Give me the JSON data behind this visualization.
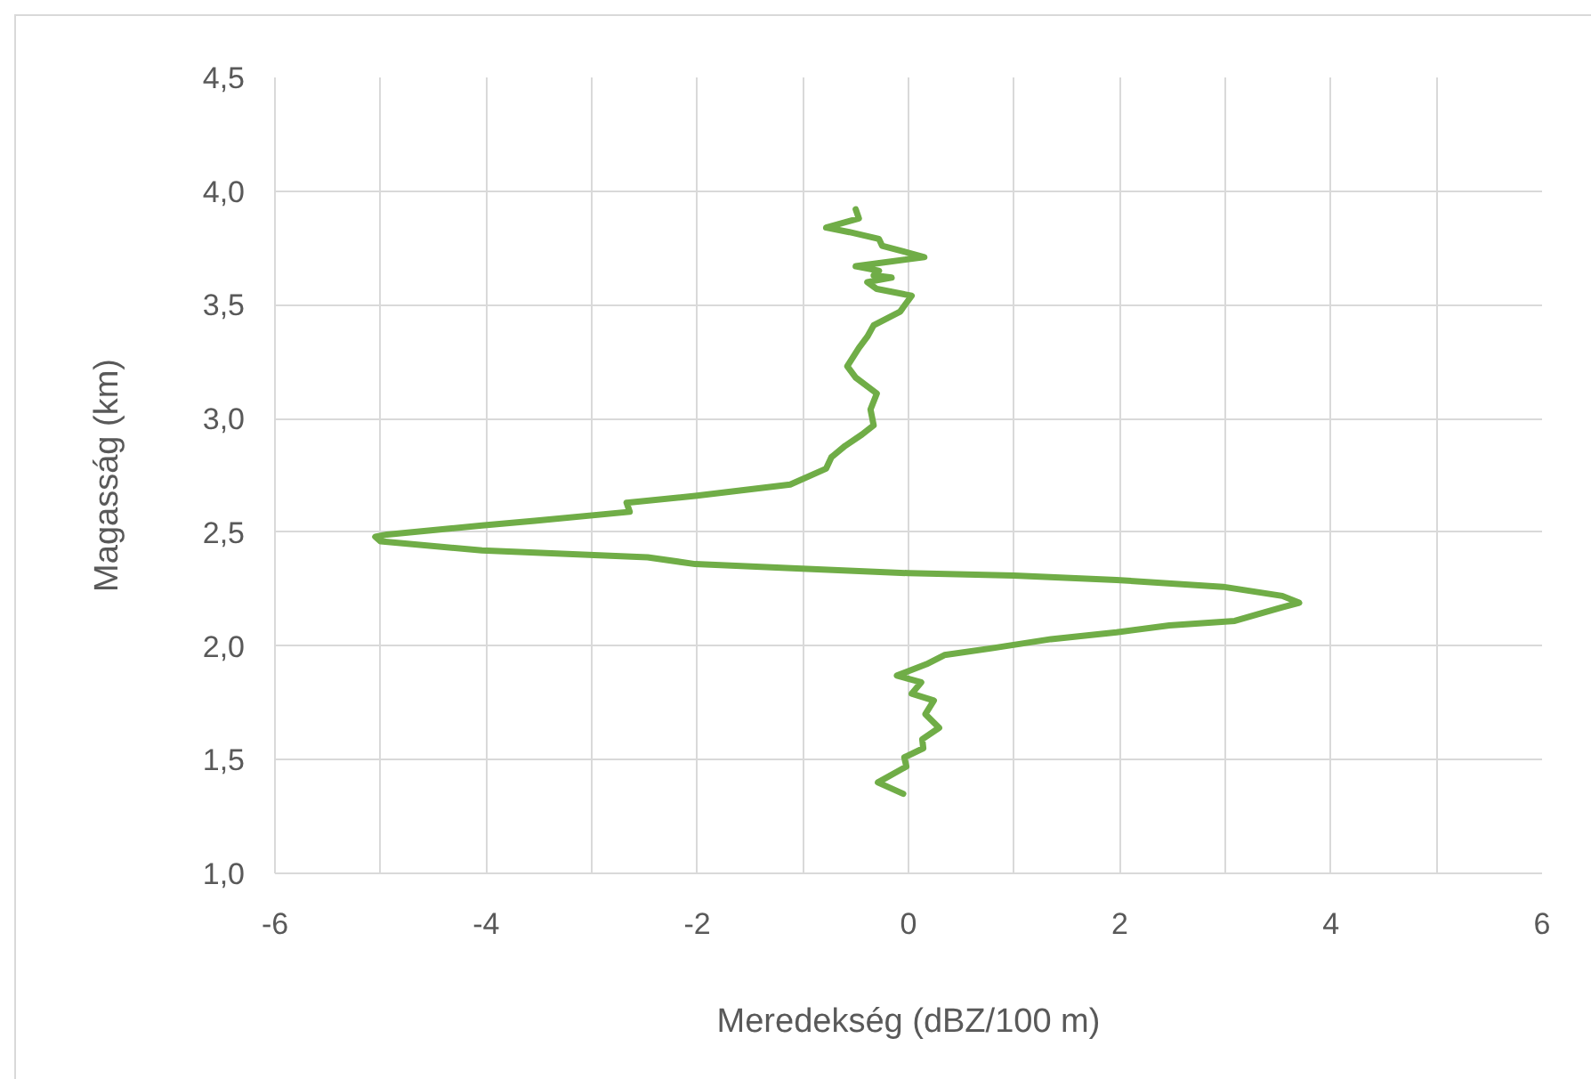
{
  "chart_data": {
    "type": "line",
    "xlabel": "Meredekség (dBZ/100 m)",
    "ylabel": "Magasság (km)",
    "xlim": [
      -6,
      6
    ],
    "ylim": [
      1.0,
      4.5
    ],
    "xticks": [
      -6,
      {
        "value": -5,
        "label": null
      },
      -4,
      {
        "value": -3,
        "label": null
      },
      -2,
      {
        "value": -1,
        "label": null
      },
      0,
      {
        "value": 1,
        "label": null
      },
      2,
      {
        "value": 3,
        "label": null
      },
      4,
      {
        "value": 5,
        "label": null
      },
      6
    ],
    "yticks": [
      {
        "value": 1.0,
        "label": "1,0"
      },
      {
        "value": 1.5,
        "label": "1,5"
      },
      {
        "value": 2.0,
        "label": "2,0"
      },
      {
        "value": 2.5,
        "label": "2,5"
      },
      {
        "value": 3.0,
        "label": "3,0"
      },
      {
        "value": 3.5,
        "label": "3,5"
      },
      {
        "value": 4.0,
        "label": "4,0"
      },
      {
        "value": 4.5,
        "label": "4,5"
      }
    ],
    "grid": true,
    "line_style": "solid",
    "series": [
      {
        "color": "#70ad47",
        "x": [
          -0.05,
          -0.29,
          -0.02,
          -0.04,
          0.14,
          0.13,
          0.29,
          0.16,
          0.24,
          0.03,
          0.12,
          -0.11,
          0.17,
          0.34,
          0.79,
          1.35,
          1.97,
          2.47,
          3.09,
          3.31,
          3.54,
          3.7,
          3.54,
          2.98,
          1.97,
          1.0,
          0.0,
          -1.01,
          -2.02,
          -2.47,
          -4.04,
          -5.0,
          -5.05,
          -4.94,
          -4.04,
          -3.54,
          -2.64,
          -2.67,
          -2.02,
          -1.12,
          -0.78,
          -0.73,
          -0.6,
          -0.44,
          -0.33,
          -0.36,
          -0.3,
          -0.5,
          -0.58,
          -0.47,
          -0.39,
          -0.33,
          -0.08,
          0.03,
          -0.3,
          -0.39,
          -0.16,
          -0.33,
          -0.28,
          -0.5,
          0.15,
          -0.25,
          -0.28,
          -0.56,
          -0.78,
          -0.47,
          -0.5
        ],
        "values": [
          1.35,
          1.4,
          1.47,
          1.51,
          1.55,
          1.59,
          1.64,
          1.7,
          1.76,
          1.79,
          1.84,
          1.87,
          1.92,
          1.96,
          1.99,
          2.03,
          2.06,
          2.09,
          2.11,
          2.14,
          2.17,
          2.19,
          2.22,
          2.26,
          2.29,
          2.31,
          2.32,
          2.34,
          2.36,
          2.39,
          2.42,
          2.46,
          2.48,
          2.49,
          2.53,
          2.55,
          2.59,
          2.63,
          2.66,
          2.71,
          2.78,
          2.83,
          2.88,
          2.93,
          2.97,
          3.04,
          3.11,
          3.18,
          3.23,
          3.31,
          3.36,
          3.41,
          3.47,
          3.54,
          3.57,
          3.6,
          3.62,
          3.63,
          3.65,
          3.67,
          3.71,
          3.76,
          3.79,
          3.82,
          3.84,
          3.88,
          3.92
        ]
      }
    ]
  }
}
